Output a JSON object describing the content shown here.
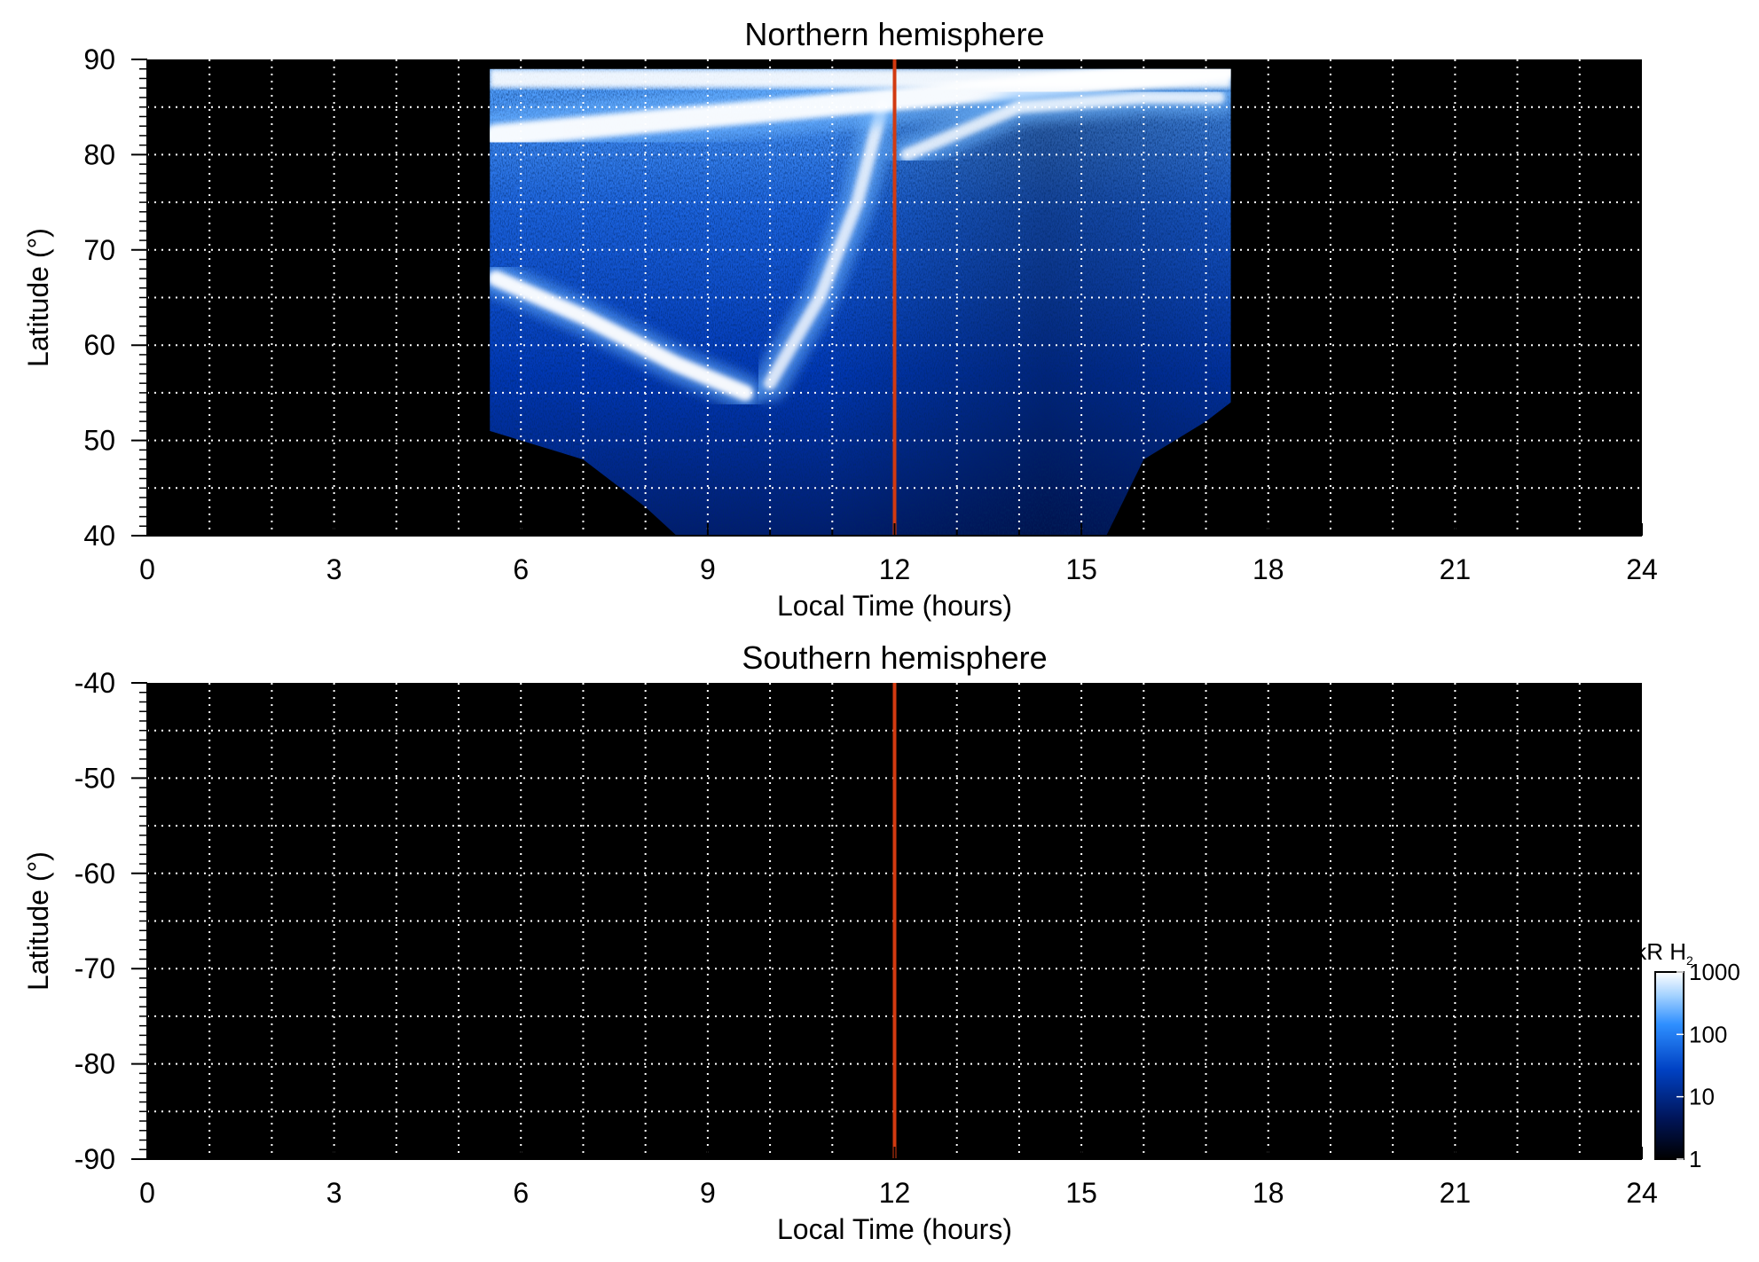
{
  "chart_data": [
    {
      "type": "heatmap",
      "title": "Northern hemisphere",
      "xlabel": "Local Time (hours)",
      "ylabel": "Latitude (°)",
      "xlim": [
        0,
        24
      ],
      "ylim": [
        40,
        90
      ],
      "x_ticks": [
        0,
        3,
        6,
        9,
        12,
        15,
        18,
        21,
        24
      ],
      "y_ticks": [
        40,
        50,
        60,
        70,
        80,
        90
      ],
      "x_gridlines": [
        1,
        2,
        3,
        4,
        5,
        6,
        7,
        8,
        9,
        10,
        11,
        12,
        13,
        14,
        15,
        16,
        17,
        18,
        19,
        20,
        21,
        22,
        23
      ],
      "y_gridlines": [
        45,
        50,
        55,
        60,
        65,
        70,
        75,
        80,
        85
      ],
      "grid": "dotted white",
      "background": "#000000",
      "reference_line": {
        "x": 12,
        "color": "#d23a10"
      },
      "coverage": {
        "lt_range": [
          5.5,
          17.4
        ],
        "lower_boundary_lt": [
          5.5,
          6.0,
          7.0,
          8.0,
          8.5,
          12.0,
          15.4,
          16.0,
          17.0,
          17.4
        ],
        "lower_boundary_lat": [
          51,
          50,
          48,
          43,
          40,
          40,
          40,
          48,
          52,
          54
        ],
        "upper_lat": 89
      },
      "features": [
        {
          "name": "dawn arc",
          "lt": [
            5.6,
            7.0,
            8.5,
            9.6
          ],
          "lat": [
            67,
            63,
            58,
            55
          ],
          "intensity_kR": 1000
        },
        {
          "name": "noon cusp region",
          "lt": [
            10.0,
            10.8,
            11.4,
            11.8
          ],
          "lat": [
            56,
            65,
            75,
            85
          ],
          "intensity_kR": 800
        },
        {
          "name": "pole cap brightening",
          "lt": [
            5.6,
            17.3
          ],
          "lat": [
            82,
            89
          ],
          "intensity_kR": 1000
        },
        {
          "name": "afternoon arc",
          "lt": [
            12.2,
            14.0,
            16.0,
            17.2
          ],
          "lat": [
            80,
            85,
            86,
            86
          ],
          "intensity_kR": 600
        }
      ]
    },
    {
      "type": "heatmap",
      "title": "Southern hemisphere",
      "xlabel": "Local Time (hours)",
      "ylabel": "Latitude (°)",
      "xlim": [
        0,
        24
      ],
      "ylim": [
        -90,
        -40
      ],
      "x_ticks": [
        0,
        3,
        6,
        9,
        12,
        15,
        18,
        21,
        24
      ],
      "y_ticks": [
        -40,
        -50,
        -60,
        -70,
        -80,
        -90
      ],
      "x_gridlines": [
        1,
        2,
        3,
        4,
        5,
        6,
        7,
        8,
        9,
        10,
        11,
        12,
        13,
        14,
        15,
        16,
        17,
        18,
        19,
        20,
        21,
        22,
        23
      ],
      "y_gridlines": [
        -45,
        -50,
        -55,
        -60,
        -65,
        -70,
        -75,
        -80,
        -85
      ],
      "grid": "dotted white",
      "background": "#000000",
      "reference_line": {
        "x": 12,
        "color": "#d23a10"
      },
      "coverage": null
    }
  ],
  "colorbar": {
    "title": "kR H",
    "title_subscript": "2",
    "scale": "log",
    "range": [
      1,
      1000
    ],
    "ticks": [
      "1",
      "10",
      "100",
      "1000"
    ],
    "colors": [
      "#000000",
      "#001a66",
      "#0047cc",
      "#2e8fff",
      "#ffffff"
    ]
  }
}
